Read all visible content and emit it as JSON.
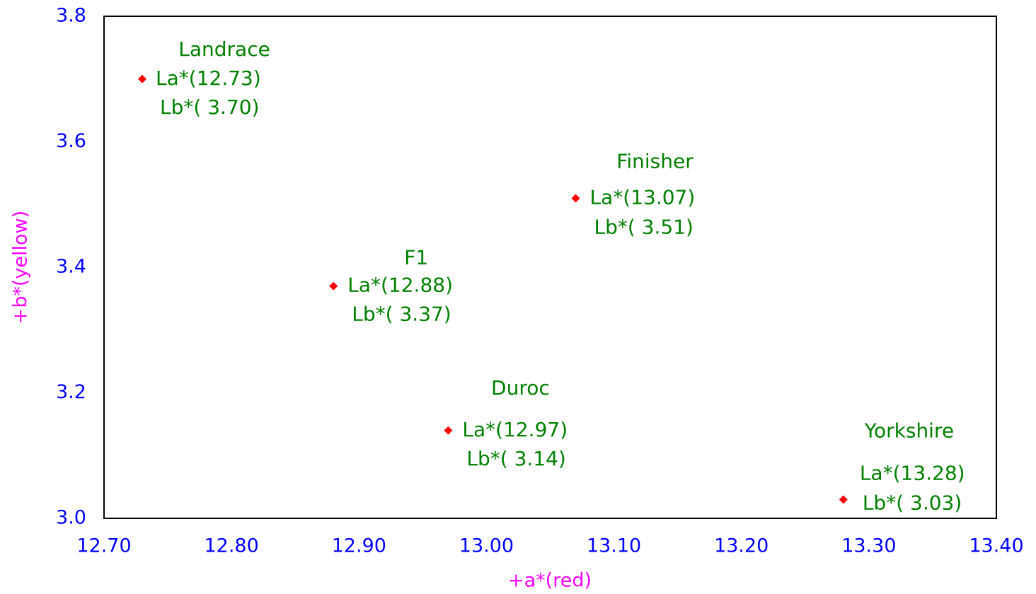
{
  "chart_data": {
    "type": "scatter",
    "xlabel": "+a*(red)",
    "ylabel": "+b*(yellow)",
    "point_names": [
      "Landrace",
      "F1",
      "Duroc",
      "Finisher",
      "Yorkshire"
    ],
    "x": [
      12.73,
      12.88,
      12.97,
      13.07,
      13.28
    ],
    "x_labels": [
      "La*(12.73)",
      "La*(12.88)",
      "La*(12.97)",
      "La*(13.07)",
      "La*(13.28)"
    ],
    "values": [
      3.7,
      3.37,
      3.14,
      3.51,
      3.03
    ],
    "value_labels": [
      "Lb*( 3.70)",
      "Lb*( 3.37)",
      "Lb*( 3.14)",
      "Lb*( 3.51)",
      "Lb*( 3.03)"
    ],
    "color": "#ff0000",
    "label_color": "#008000",
    "xlim": [
      12.7,
      13.4
    ],
    "xticks": [
      {
        "value": 12.7,
        "label": "12.70"
      },
      {
        "value": 12.8,
        "label": "12.80"
      },
      {
        "value": 12.9,
        "label": "12.90"
      },
      {
        "value": 13.0,
        "label": "13.00"
      },
      {
        "value": 13.1,
        "label": "13.10"
      },
      {
        "value": 13.2,
        "label": "13.20"
      },
      {
        "value": 13.3,
        "label": "13.30"
      },
      {
        "value": 13.4,
        "label": "13.40"
      }
    ],
    "ylim": [
      3.0,
      3.8
    ],
    "yticks": [
      {
        "value": 3.0,
        "label": "3.0"
      },
      3.2,
      3.4,
      3.6,
      3.8
    ],
    "grid": false
  }
}
